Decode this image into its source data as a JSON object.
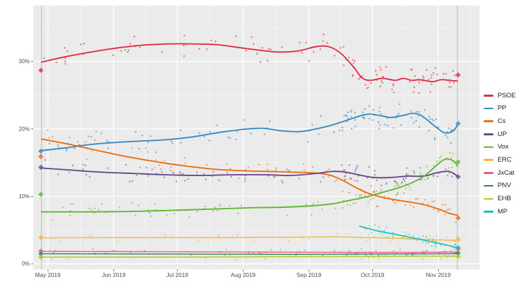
{
  "figure": {
    "background": "#ffffff",
    "plot_background": "#ebebeb",
    "grid_color": "#ffffff",
    "axis_text_color": "#4d4d4d",
    "tick_mark_color": "#333333",
    "event_line_color": "#ababab"
  },
  "chart_data": {
    "type": "scatter",
    "title": "",
    "legend_position": "right",
    "x_axis": {
      "tick_labels": [
        "May 2019",
        "Jun 2019",
        "Jul 2019",
        "Aug 2019",
        "Sep 2019",
        "Oct 2019",
        "Nov 2019"
      ],
      "tick_positions_days": [
        3,
        34,
        64,
        95,
        126,
        156,
        187
      ],
      "total_days": 196,
      "events": [
        {
          "name": "previous-election",
          "t": 0
        },
        {
          "name": "election-day",
          "t": 1
        }
      ]
    },
    "y_axis": {
      "ticks": [
        0,
        10,
        20,
        30
      ],
      "tick_labels": [
        "0%",
        "10%",
        "20%",
        "30%"
      ],
      "minor_ticks": [
        5,
        15,
        25,
        35
      ],
      "unit": "%",
      "range": [
        -0.8,
        38.3
      ]
    },
    "series": [
      {
        "name": "PSOE",
        "color": "#e12c47",
        "line_width": 1.9,
        "dot_r": 1.25,
        "start_marker": 28.7,
        "end_marker": 28.0,
        "scatter": {
          "count": 115,
          "jitter": 1.3,
          "t_min": 0.005
        },
        "trend": [
          [
            0,
            29.9
          ],
          [
            0.05,
            30.6
          ],
          [
            0.1,
            31.2
          ],
          [
            0.17,
            31.9
          ],
          [
            0.24,
            32.4
          ],
          [
            0.31,
            32.6
          ],
          [
            0.36,
            32.6
          ],
          [
            0.42,
            32.5
          ],
          [
            0.47,
            32.1
          ],
          [
            0.52,
            31.7
          ],
          [
            0.57,
            31.4
          ],
          [
            0.62,
            31.6
          ],
          [
            0.66,
            32.2
          ],
          [
            0.69,
            32.2
          ],
          [
            0.72,
            31.2
          ],
          [
            0.75,
            29.2
          ],
          [
            0.77,
            27.6
          ],
          [
            0.79,
            27.2
          ],
          [
            0.82,
            27.5
          ],
          [
            0.85,
            27.2
          ],
          [
            0.87,
            27.5
          ],
          [
            0.89,
            27.2
          ],
          [
            0.91,
            27.3
          ],
          [
            0.94,
            27.0
          ],
          [
            0.96,
            27.3
          ],
          [
            0.98,
            27.2
          ],
          [
            1,
            27.1
          ]
        ]
      },
      {
        "name": "PP",
        "color": "#3a8ac2",
        "line_width": 1.9,
        "dot_r": 1.25,
        "start_marker": 16.7,
        "end_marker": 20.8,
        "scatter": {
          "count": 115,
          "jitter": 1.25,
          "t_min": 0.005
        },
        "trend": [
          [
            0,
            16.8
          ],
          [
            0.06,
            17.2
          ],
          [
            0.12,
            17.7
          ],
          [
            0.18,
            18.0
          ],
          [
            0.24,
            18.2
          ],
          [
            0.3,
            18.4
          ],
          [
            0.36,
            18.8
          ],
          [
            0.42,
            19.4
          ],
          [
            0.48,
            19.9
          ],
          [
            0.53,
            20.1
          ],
          [
            0.58,
            19.7
          ],
          [
            0.62,
            19.6
          ],
          [
            0.66,
            20.0
          ],
          [
            0.7,
            20.6
          ],
          [
            0.74,
            21.4
          ],
          [
            0.77,
            22.0
          ],
          [
            0.79,
            22.2
          ],
          [
            0.82,
            21.9
          ],
          [
            0.84,
            21.7
          ],
          [
            0.87,
            22.0
          ],
          [
            0.89,
            22.3
          ],
          [
            0.91,
            22.1
          ],
          [
            0.93,
            21.2
          ],
          [
            0.95,
            20.2
          ],
          [
            0.97,
            19.4
          ],
          [
            0.99,
            19.7
          ],
          [
            1,
            20.6
          ]
        ]
      },
      {
        "name": "Cs",
        "color": "#ec6c10",
        "line_width": 1.9,
        "dot_r": 1.2,
        "start_marker": 15.9,
        "end_marker": 6.8,
        "scatter": {
          "count": 100,
          "jitter": 1.1,
          "t_min": 0.005
        },
        "trend": [
          [
            0,
            18.5
          ],
          [
            0.06,
            17.8
          ],
          [
            0.12,
            17.0
          ],
          [
            0.18,
            16.2
          ],
          [
            0.24,
            15.5
          ],
          [
            0.3,
            14.9
          ],
          [
            0.36,
            14.4
          ],
          [
            0.42,
            14.0
          ],
          [
            0.48,
            13.8
          ],
          [
            0.54,
            13.7
          ],
          [
            0.6,
            13.6
          ],
          [
            0.65,
            13.5
          ],
          [
            0.69,
            13.2
          ],
          [
            0.72,
            12.5
          ],
          [
            0.75,
            11.5
          ],
          [
            0.78,
            10.6
          ],
          [
            0.81,
            10.0
          ],
          [
            0.84,
            9.6
          ],
          [
            0.87,
            9.3
          ],
          [
            0.9,
            9.0
          ],
          [
            0.93,
            8.6
          ],
          [
            0.96,
            8.0
          ],
          [
            0.98,
            7.5
          ],
          [
            1,
            7.2
          ]
        ]
      },
      {
        "name": "UP",
        "color": "#6a4a8c",
        "line_width": 1.9,
        "dot_r": 1.2,
        "start_marker": 14.3,
        "end_marker": 12.9,
        "scatter": {
          "count": 100,
          "jitter": 1.05,
          "t_min": 0.005
        },
        "trend": [
          [
            0,
            14.2
          ],
          [
            0.07,
            13.9
          ],
          [
            0.14,
            13.6
          ],
          [
            0.22,
            13.4
          ],
          [
            0.3,
            13.2
          ],
          [
            0.38,
            13.1
          ],
          [
            0.46,
            13.2
          ],
          [
            0.54,
            13.2
          ],
          [
            0.6,
            13.1
          ],
          [
            0.66,
            13.4
          ],
          [
            0.7,
            13.7
          ],
          [
            0.73,
            13.6
          ],
          [
            0.77,
            13.1
          ],
          [
            0.8,
            12.8
          ],
          [
            0.84,
            12.8
          ],
          [
            0.88,
            13.0
          ],
          [
            0.92,
            13.0
          ],
          [
            0.95,
            13.5
          ],
          [
            0.98,
            13.7
          ],
          [
            1,
            13.0
          ]
        ]
      },
      {
        "name": "Vox",
        "color": "#5eb82f",
        "line_width": 1.9,
        "dot_r": 1.2,
        "start_marker": 10.3,
        "end_marker": 15.1,
        "scatter": {
          "count": 100,
          "jitter": 1.0,
          "t_min": 0.005
        },
        "trend": [
          [
            0,
            7.7
          ],
          [
            0.1,
            7.7
          ],
          [
            0.2,
            7.75
          ],
          [
            0.3,
            7.9
          ],
          [
            0.4,
            8.1
          ],
          [
            0.5,
            8.3
          ],
          [
            0.58,
            8.4
          ],
          [
            0.65,
            8.6
          ],
          [
            0.7,
            8.9
          ],
          [
            0.74,
            9.4
          ],
          [
            0.78,
            9.9
          ],
          [
            0.82,
            10.6
          ],
          [
            0.86,
            11.3
          ],
          [
            0.89,
            12.0
          ],
          [
            0.92,
            13.0
          ],
          [
            0.95,
            14.6
          ],
          [
            0.97,
            15.5
          ],
          [
            0.99,
            15.3
          ],
          [
            1,
            14.5
          ]
        ]
      },
      {
        "name": "ERC",
        "color": "#f3b839",
        "line_width": 1.4,
        "dot_r": 1.1,
        "start_marker": 3.9,
        "end_marker": 3.6,
        "scatter": {
          "count": 58,
          "jitter": 0.5,
          "t_min": 0.005
        },
        "trend": [
          [
            0,
            3.85
          ],
          [
            0.2,
            3.9
          ],
          [
            0.4,
            3.9
          ],
          [
            0.6,
            3.95
          ],
          [
            0.7,
            4.0
          ],
          [
            0.78,
            3.9
          ],
          [
            0.85,
            3.8
          ],
          [
            0.92,
            3.6
          ],
          [
            1,
            3.5
          ]
        ]
      },
      {
        "name": "JxCat",
        "color": "#e25d90",
        "line_width": 1.4,
        "dot_r": 1.1,
        "start_marker": 1.9,
        "end_marker": 2.2,
        "scatter": {
          "count": 42,
          "jitter": 0.35,
          "t_min": 0.005
        },
        "trend": [
          [
            0,
            1.85
          ],
          [
            0.25,
            1.8
          ],
          [
            0.5,
            1.75
          ],
          [
            0.75,
            1.7
          ],
          [
            0.9,
            1.7
          ],
          [
            1,
            1.75
          ]
        ]
      },
      {
        "name": "PNV",
        "color": "#33834c",
        "line_width": 1.4,
        "dot_r": 1.1,
        "start_marker": 1.5,
        "end_marker": 1.6,
        "scatter": {
          "count": 40,
          "jitter": 0.3,
          "t_min": 0.005
        },
        "trend": [
          [
            0,
            1.5
          ],
          [
            0.3,
            1.45
          ],
          [
            0.6,
            1.4
          ],
          [
            0.8,
            1.45
          ],
          [
            1,
            1.5
          ]
        ]
      },
      {
        "name": "EHB",
        "color": "#abc821",
        "line_width": 1.4,
        "dot_r": 1.1,
        "start_marker": 1.0,
        "end_marker": 1.1,
        "scatter": {
          "count": 40,
          "jitter": 0.3,
          "t_min": 0.005
        },
        "trend": [
          [
            0,
            1.0
          ],
          [
            0.3,
            1.0
          ],
          [
            0.6,
            1.05
          ],
          [
            0.8,
            1.1
          ],
          [
            1,
            1.15
          ]
        ]
      },
      {
        "name": "MP",
        "color": "#12c2b4",
        "line_width": 1.7,
        "dot_r": 1.15,
        "start_marker": null,
        "end_marker": 2.4,
        "scatter": {
          "count": 48,
          "jitter": 0.55,
          "t_min": 0.77
        },
        "trend": [
          [
            0.765,
            5.6
          ],
          [
            0.8,
            5.0
          ],
          [
            0.84,
            4.5
          ],
          [
            0.88,
            4.0
          ],
          [
            0.92,
            3.5
          ],
          [
            0.95,
            3.1
          ],
          [
            0.98,
            2.7
          ],
          [
            1,
            2.3
          ]
        ]
      }
    ]
  }
}
